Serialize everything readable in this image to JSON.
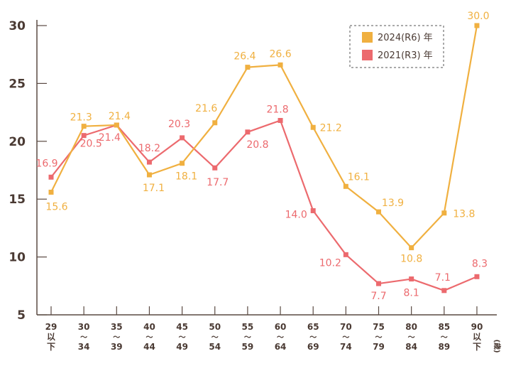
{
  "chart_data": {
    "type": "line",
    "categories": [
      [
        "29",
        "以",
        "下"
      ],
      [
        "30",
        "〜",
        "34"
      ],
      [
        "35",
        "〜",
        "39"
      ],
      [
        "40",
        "〜",
        "44"
      ],
      [
        "45",
        "〜",
        "49"
      ],
      [
        "50",
        "〜",
        "54"
      ],
      [
        "55",
        "〜",
        "59"
      ],
      [
        "60",
        "〜",
        "64"
      ],
      [
        "65",
        "〜",
        "69"
      ],
      [
        "70",
        "〜",
        "74"
      ],
      [
        "75",
        "〜",
        "79"
      ],
      [
        "80",
        "〜",
        "84"
      ],
      [
        "85",
        "〜",
        "89"
      ],
      [
        "90",
        "以",
        "下"
      ]
    ],
    "unit_label": "(歳)",
    "ylim": [
      5,
      30
    ],
    "yticks": [
      5,
      10,
      15,
      20,
      25,
      30
    ],
    "series": [
      {
        "name": "2024(R6) 年",
        "color": "#f0b040",
        "values": [
          15.6,
          21.3,
          21.4,
          17.1,
          18.1,
          21.6,
          26.4,
          26.6,
          21.2,
          16.1,
          13.9,
          10.8,
          13.8,
          30.0
        ],
        "labels": [
          "15.6",
          "21.3",
          "21.4",
          "17.1",
          "18.1",
          "21.6",
          "26.4",
          "26.6",
          "21.2",
          "16.1",
          "13.9",
          "10.8",
          "13.8",
          "30.0"
        ]
      },
      {
        "name": "2021(R3) 年",
        "color": "#ec6a6e",
        "values": [
          16.9,
          20.5,
          21.4,
          18.2,
          20.3,
          17.7,
          20.8,
          21.8,
          14.0,
          10.2,
          7.7,
          8.1,
          7.1,
          8.3
        ],
        "labels": [
          "16.9",
          "20.5",
          "21.4",
          "18.2",
          "20.3",
          "17.7",
          "20.8",
          "21.8",
          "14.0",
          "10.2",
          "7.7",
          "8.1",
          "7.1",
          "8.3"
        ]
      }
    ]
  }
}
